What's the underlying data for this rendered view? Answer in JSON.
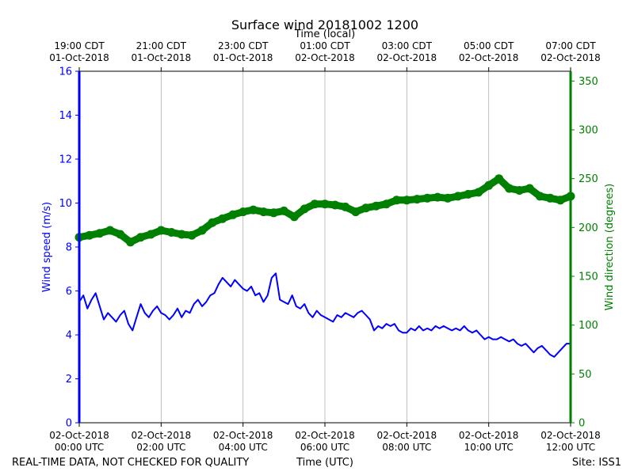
{
  "figure": {
    "title": "Surface wind 20181002 1200",
    "top_axis_label": "Time (local)",
    "bottom_axis_label": "Time (UTC)",
    "footer_left": "REAL-TIME DATA, NOT CHECKED FOR QUALITY",
    "footer_right": "Site: ISS1"
  },
  "chart_data": {
    "type": "line",
    "title": "Surface wind 20181002 1200",
    "xlabel": "Time (UTC)",
    "x2label": "Time (local)",
    "xlim": [
      "2018-10-02 00:00",
      "2018-10-02 12:00"
    ],
    "x_ticks_utc": [
      {
        "line1": "02-Oct-2018",
        "line2": "00:00 UTC"
      },
      {
        "line1": "02-Oct-2018",
        "line2": "02:00 UTC"
      },
      {
        "line1": "02-Oct-2018",
        "line2": "04:00 UTC"
      },
      {
        "line1": "02-Oct-2018",
        "line2": "06:00 UTC"
      },
      {
        "line1": "02-Oct-2018",
        "line2": "08:00 UTC"
      },
      {
        "line1": "02-Oct-2018",
        "line2": "10:00 UTC"
      },
      {
        "line1": "02-Oct-2018",
        "line2": "12:00 UTC"
      }
    ],
    "x_ticks_local": [
      {
        "line1": "19:00 CDT",
        "line2": "01-Oct-2018"
      },
      {
        "line1": "21:00 CDT",
        "line2": "01-Oct-2018"
      },
      {
        "line1": "23:00 CDT",
        "line2": "01-Oct-2018"
      },
      {
        "line1": "01:00 CDT",
        "line2": "02-Oct-2018"
      },
      {
        "line1": "03:00 CDT",
        "line2": "02-Oct-2018"
      },
      {
        "line1": "05:00 CDT",
        "line2": "02-Oct-2018"
      },
      {
        "line1": "07:00 CDT",
        "line2": "02-Oct-2018"
      }
    ],
    "y_left": {
      "label": "Wind speed (m/s)",
      "range": [
        0,
        16
      ],
      "ticks": [
        0,
        2,
        4,
        6,
        8,
        10,
        12,
        14,
        16
      ],
      "color": "#0000ff"
    },
    "y_right": {
      "label": "Wind direction (degrees)",
      "range": [
        0,
        360
      ],
      "ticks": [
        0,
        50,
        100,
        150,
        200,
        250,
        300,
        350
      ],
      "color": "#008000"
    },
    "grid": "vertical",
    "series": [
      {
        "axis": "left",
        "color": "#0000ff",
        "x_hours_utc": [
          0,
          0.1,
          0.2,
          0.3,
          0.4,
          0.5,
          0.6,
          0.7,
          0.8,
          0.9,
          1.0,
          1.1,
          1.2,
          1.3,
          1.4,
          1.5,
          1.6,
          1.7,
          1.8,
          1.9,
          2.0,
          2.1,
          2.2,
          2.3,
          2.4,
          2.5,
          2.6,
          2.7,
          2.8,
          2.9,
          3.0,
          3.1,
          3.2,
          3.3,
          3.4,
          3.5,
          3.6,
          3.7,
          3.8,
          3.9,
          4.0,
          4.1,
          4.2,
          4.3,
          4.4,
          4.5,
          4.6,
          4.7,
          4.8,
          4.9,
          5.0,
          5.1,
          5.2,
          5.3,
          5.4,
          5.5,
          5.6,
          5.7,
          5.8,
          5.9,
          6.0,
          6.1,
          6.2,
          6.3,
          6.4,
          6.5,
          6.6,
          6.7,
          6.8,
          6.9,
          7.0,
          7.1,
          7.2,
          7.3,
          7.4,
          7.5,
          7.6,
          7.7,
          7.8,
          7.9,
          8.0,
          8.1,
          8.2,
          8.3,
          8.4,
          8.5,
          8.6,
          8.7,
          8.8,
          8.9,
          9.0,
          9.1,
          9.2,
          9.3,
          9.4,
          9.5,
          9.6,
          9.7,
          9.8,
          9.9,
          10.0,
          10.1,
          10.2,
          10.3,
          10.4,
          10.5,
          10.6,
          10.7,
          10.8,
          10.9,
          11.0,
          11.1,
          11.2,
          11.3,
          11.4,
          11.5,
          11.6,
          11.7,
          11.8,
          11.9,
          12.0
        ],
        "values": [
          5.5,
          5.8,
          5.2,
          5.6,
          5.9,
          5.3,
          4.7,
          5.0,
          4.8,
          4.6,
          4.9,
          5.1,
          4.5,
          4.2,
          4.8,
          5.4,
          5.0,
          4.8,
          5.1,
          5.3,
          5.0,
          4.9,
          4.7,
          4.9,
          5.2,
          4.8,
          5.1,
          5.0,
          5.4,
          5.6,
          5.3,
          5.5,
          5.8,
          5.9,
          6.3,
          6.6,
          6.4,
          6.2,
          6.5,
          6.3,
          6.1,
          6.0,
          6.2,
          5.8,
          5.9,
          5.5,
          5.8,
          6.6,
          6.8,
          5.6,
          5.5,
          5.4,
          5.8,
          5.3,
          5.2,
          5.4,
          5.0,
          4.8,
          5.1,
          4.9,
          4.8,
          4.7,
          4.6,
          4.9,
          4.8,
          5.0,
          4.9,
          4.8,
          5.0,
          5.1,
          4.9,
          4.7,
          4.2,
          4.4,
          4.3,
          4.5,
          4.4,
          4.5,
          4.2,
          4.1,
          4.1,
          4.3,
          4.2,
          4.4,
          4.2,
          4.3,
          4.2,
          4.4,
          4.3,
          4.4,
          4.3,
          4.2,
          4.3,
          4.2,
          4.4,
          4.2,
          4.1,
          4.2,
          4.0,
          3.8,
          3.9,
          3.8,
          3.8,
          3.9,
          3.8,
          3.7,
          3.8,
          3.6,
          3.5,
          3.6,
          3.4,
          3.2,
          3.4,
          3.5,
          3.3,
          3.1,
          3.0,
          3.2,
          3.4,
          3.6,
          3.6
        ]
      },
      {
        "axis": "right",
        "color": "#008000",
        "x_hours_utc": [
          0,
          0.25,
          0.5,
          0.75,
          1.0,
          1.25,
          1.5,
          1.75,
          2.0,
          2.25,
          2.5,
          2.75,
          3.0,
          3.25,
          3.5,
          3.75,
          4.0,
          4.25,
          4.5,
          4.75,
          5.0,
          5.25,
          5.5,
          5.75,
          6.0,
          6.25,
          6.5,
          6.75,
          7.0,
          7.25,
          7.5,
          7.75,
          8.0,
          8.25,
          8.5,
          8.75,
          9.0,
          9.25,
          9.5,
          9.75,
          10.0,
          10.25,
          10.5,
          10.75,
          11.0,
          11.25,
          11.5,
          11.75,
          12.0
        ],
        "values": [
          190,
          192,
          194,
          197,
          193,
          185,
          190,
          193,
          197,
          195,
          193,
          192,
          197,
          205,
          209,
          213,
          216,
          218,
          216,
          215,
          217,
          211,
          219,
          224,
          224,
          223,
          221,
          216,
          220,
          222,
          224,
          228,
          228,
          229,
          230,
          231,
          230,
          232,
          234,
          236,
          243,
          250,
          240,
          238,
          240,
          232,
          230,
          228,
          232
        ]
      }
    ]
  }
}
